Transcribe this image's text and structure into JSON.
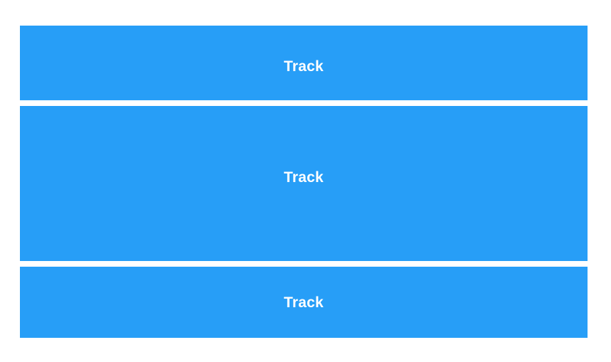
{
  "colors": {
    "track_fill": "#279EF7",
    "label": "#FFFFFF",
    "background": "#FFFFFF"
  },
  "tracks": [
    {
      "label": "Track"
    },
    {
      "label": "Track"
    },
    {
      "label": "Track"
    }
  ]
}
